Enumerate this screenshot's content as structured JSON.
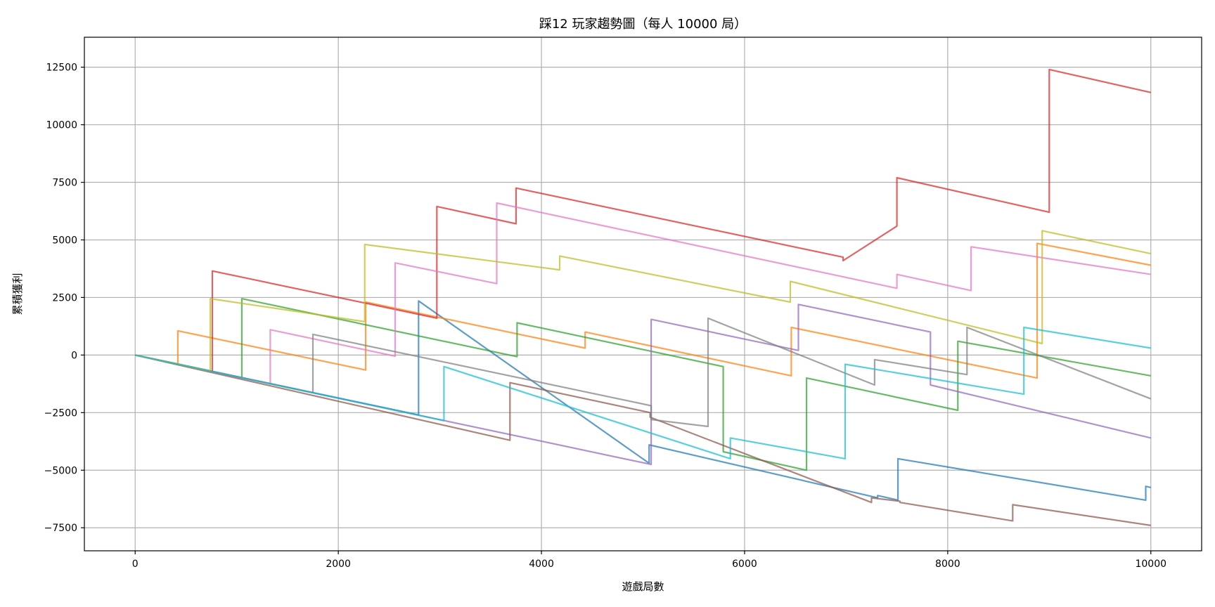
{
  "chart_data": {
    "type": "line",
    "title": "踩12 玩家趨勢圖（每人 10000 局）",
    "xlabel": "遊戲局數",
    "ylabel": "累積獲利",
    "xlim": [
      -500,
      10500
    ],
    "ylim": [
      -8500,
      13800
    ],
    "xticks": [
      0,
      2000,
      4000,
      6000,
      8000,
      10000
    ],
    "yticks": [
      -7500,
      -5000,
      -2500,
      0,
      2500,
      5000,
      7500,
      10000,
      12500
    ],
    "grid": true,
    "legend": "none",
    "series": [
      {
        "color": "#1f77b4",
        "points": [
          [
            0,
            0
          ],
          [
            2790,
            -2600
          ],
          [
            2790,
            2350
          ],
          [
            5060,
            -4700
          ],
          [
            5060,
            -3900
          ],
          [
            7310,
            -6200
          ],
          [
            7310,
            -6100
          ],
          [
            7510,
            -6300
          ],
          [
            7510,
            -4500
          ],
          [
            9950,
            -6300
          ],
          [
            9950,
            -5700
          ],
          [
            10000,
            -5750
          ]
        ]
      },
      {
        "color": "#ff7f0e",
        "points": [
          [
            0,
            0
          ],
          [
            420,
            -390
          ],
          [
            420,
            1050
          ],
          [
            2270,
            -650
          ],
          [
            2270,
            2300
          ],
          [
            4430,
            300
          ],
          [
            4430,
            1000
          ],
          [
            6460,
            -900
          ],
          [
            6460,
            1200
          ],
          [
            8880,
            -1000
          ],
          [
            8880,
            4850
          ],
          [
            10000,
            3900
          ]
        ]
      },
      {
        "color": "#2ca02c",
        "points": [
          [
            0,
            0
          ],
          [
            1050,
            -990
          ],
          [
            1050,
            2450
          ],
          [
            3760,
            -70
          ],
          [
            3760,
            1400
          ],
          [
            5790,
            -500
          ],
          [
            5790,
            -4200
          ],
          [
            6610,
            -5000
          ],
          [
            6610,
            -1000
          ],
          [
            8100,
            -2400
          ],
          [
            8100,
            600
          ],
          [
            10000,
            -900
          ]
        ]
      },
      {
        "color": "#d62728",
        "points": [
          [
            0,
            0
          ],
          [
            760,
            -710
          ],
          [
            760,
            3650
          ],
          [
            2970,
            1600
          ],
          [
            2970,
            6450
          ],
          [
            3750,
            5700
          ],
          [
            3750,
            7250
          ],
          [
            6970,
            4250
          ],
          [
            6970,
            4100
          ],
          [
            7500,
            5600
          ],
          [
            7500,
            7700
          ],
          [
            9000,
            6200
          ],
          [
            9000,
            12400
          ],
          [
            10000,
            11400
          ]
        ]
      },
      {
        "color": "#9467bd",
        "points": [
          [
            0,
            0
          ],
          [
            5080,
            -4750
          ],
          [
            5080,
            1550
          ],
          [
            6530,
            200
          ],
          [
            6530,
            2200
          ],
          [
            7830,
            1000
          ],
          [
            7830,
            -1300
          ],
          [
            10000,
            -3600
          ]
        ]
      },
      {
        "color": "#8c564b",
        "points": [
          [
            0,
            0
          ],
          [
            3690,
            -3700
          ],
          [
            3690,
            -1200
          ],
          [
            5070,
            -2500
          ],
          [
            5070,
            -2700
          ],
          [
            7250,
            -6400
          ],
          [
            7250,
            -6200
          ],
          [
            7530,
            -6350
          ],
          [
            7530,
            -6400
          ],
          [
            8640,
            -7200
          ],
          [
            8640,
            -6500
          ],
          [
            10000,
            -7400
          ]
        ]
      },
      {
        "color": "#e377c2",
        "points": [
          [
            0,
            0
          ],
          [
            1330,
            -1240
          ],
          [
            1330,
            1100
          ],
          [
            2560,
            -50
          ],
          [
            2560,
            4000
          ],
          [
            3560,
            3100
          ],
          [
            3560,
            6600
          ],
          [
            7500,
            2900
          ],
          [
            7500,
            3500
          ],
          [
            8230,
            2800
          ],
          [
            8230,
            4700
          ],
          [
            10000,
            3500
          ]
        ]
      },
      {
        "color": "#7f7f7f",
        "points": [
          [
            0,
            0
          ],
          [
            1750,
            -1640
          ],
          [
            1750,
            900
          ],
          [
            5080,
            -2200
          ],
          [
            5080,
            -2800
          ],
          [
            5640,
            -3100
          ],
          [
            5640,
            1600
          ],
          [
            7280,
            -1300
          ],
          [
            7280,
            -200
          ],
          [
            8190,
            -850
          ],
          [
            8190,
            1200
          ],
          [
            10000,
            -1900
          ]
        ]
      },
      {
        "color": "#bcbd22",
        "points": [
          [
            0,
            0
          ],
          [
            740,
            -690
          ],
          [
            740,
            2450
          ],
          [
            2260,
            1450
          ],
          [
            2260,
            4800
          ],
          [
            4180,
            3700
          ],
          [
            4180,
            4300
          ],
          [
            6450,
            2300
          ],
          [
            6450,
            3200
          ],
          [
            8930,
            500
          ],
          [
            8930,
            5400
          ],
          [
            10000,
            4400
          ]
        ]
      },
      {
        "color": "#17becf",
        "points": [
          [
            0,
            0
          ],
          [
            3040,
            -2850
          ],
          [
            3040,
            -500
          ],
          [
            5860,
            -4500
          ],
          [
            5860,
            -3600
          ],
          [
            6990,
            -4500
          ],
          [
            6990,
            -400
          ],
          [
            8750,
            -1700
          ],
          [
            8750,
            1200
          ],
          [
            10000,
            300
          ]
        ]
      }
    ]
  }
}
